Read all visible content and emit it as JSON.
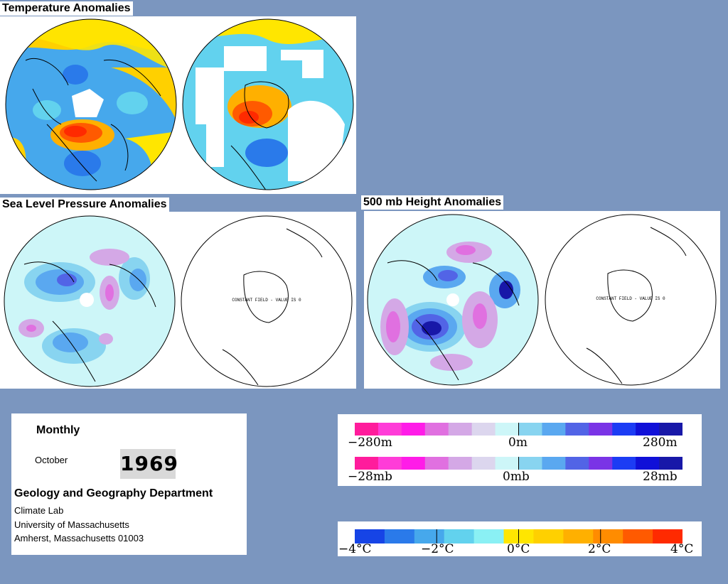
{
  "titles": {
    "temperature": "Temperature Anomalies",
    "slp": "Sea Level Pressure Anomalies",
    "height500": "500 mb Height Anomalies"
  },
  "map_annotations": {
    "constant_field": "CONSTANT FIELD - VALUE IS 0"
  },
  "info": {
    "period": "Monthly",
    "month": "October",
    "year": "1969",
    "department": "Geology and Geography Department",
    "lab": "Climate Lab",
    "university": "University of Massachusetts",
    "address": "Amherst, Massachusetts 01003"
  },
  "legends": {
    "height": {
      "left": "−280m",
      "mid": "0m",
      "right": "280m"
    },
    "pressure": {
      "left": "−28mb",
      "mid": "0mb",
      "right": "28mb"
    },
    "temperature": {
      "t0": "−4°C",
      "t1": "−2°C",
      "t2": "0°C",
      "t3": "2°C",
      "t4": "4°C"
    }
  },
  "colors": {
    "background": "#7b96bf",
    "anomaly_scale": [
      "#ff1c9c",
      "#ff3cd8",
      "#ff1ce8",
      "#e070e0",
      "#d4a8e6",
      "#dcd6ee",
      "#cdf6f8",
      "#88d4f0",
      "#5aa8f0",
      "#5264e6",
      "#7a34e6",
      "#1c3cf4",
      "#1010d8",
      "#1818a8"
    ],
    "temp_scale": [
      "#1644e6",
      "#2a7aea",
      "#46a8ec",
      "#62d2ee",
      "#8af0f4",
      "#ffe600",
      "#ffd000",
      "#ffb000",
      "#ff8c00",
      "#ff5a00",
      "#ff2a00"
    ]
  }
}
